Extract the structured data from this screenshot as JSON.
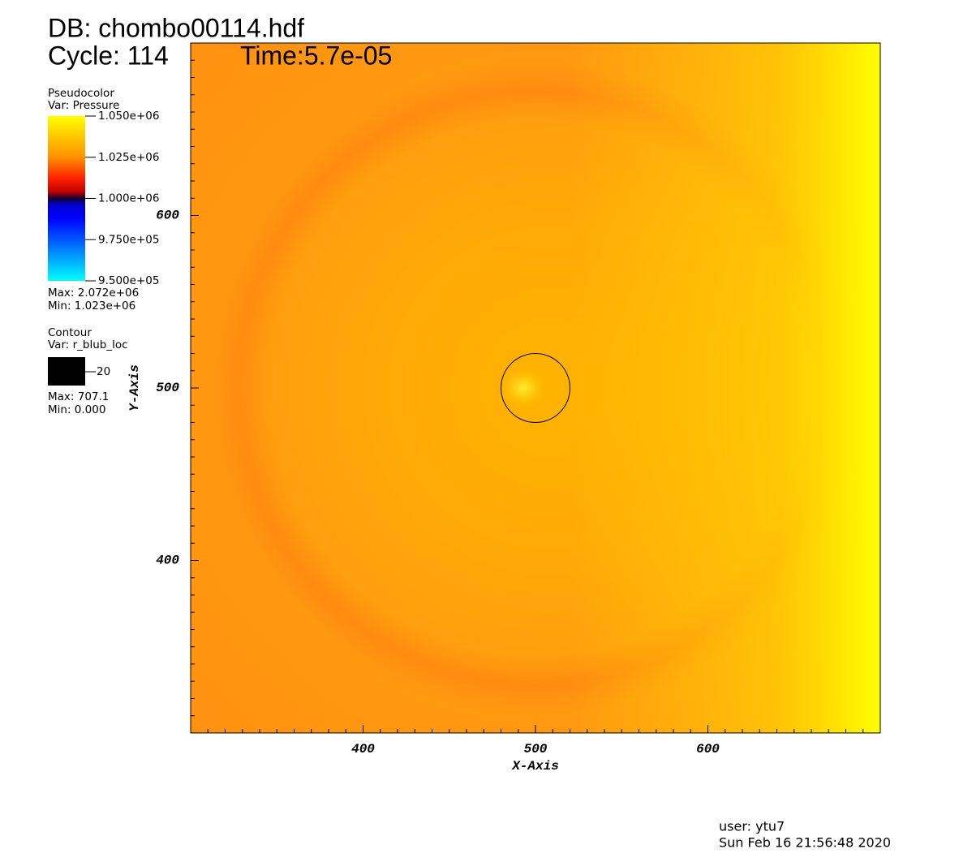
{
  "chart_data": {
    "type": "pseudocolor",
    "database": "DB: chombo00114.hdf",
    "cycle": "Cycle: 114",
    "time": "Time:5.7e-05",
    "x_label": "X-Axis",
    "y_label": "Y-Axis",
    "xlim": [
      300,
      700
    ],
    "ylim": [
      300,
      700
    ],
    "xticks": [
      400,
      500,
      600
    ],
    "yticks": [
      400,
      500,
      600
    ],
    "xminorticks": [
      310,
      320,
      330,
      340,
      350,
      360,
      370,
      380,
      390,
      410,
      420,
      430,
      440,
      450,
      460,
      470,
      480,
      490,
      510,
      520,
      530,
      540,
      550,
      560,
      570,
      580,
      590,
      610,
      620,
      630,
      640,
      650,
      660,
      670,
      680,
      690
    ],
    "yminorticks": [
      310,
      320,
      330,
      340,
      350,
      360,
      370,
      380,
      390,
      410,
      420,
      430,
      440,
      450,
      460,
      470,
      480,
      490,
      510,
      520,
      530,
      540,
      550,
      560,
      570,
      580,
      590,
      610,
      620,
      630,
      640,
      650,
      660,
      670,
      680,
      690
    ],
    "pseudocolor": {
      "title": "Pseudocolor",
      "variable": "Var: Pressure",
      "range": [
        950000,
        1050000
      ],
      "ticks": [
        {
          "value": 1050000,
          "label": "1.050e+06"
        },
        {
          "value": 1025000,
          "label": "1.025e+06"
        },
        {
          "value": 1000000,
          "label": "1.000e+06"
        },
        {
          "value": 975000,
          "label": "9.750e+05"
        },
        {
          "value": 950000,
          "label": "9.500e+05"
        }
      ],
      "max": "Max: 2.072e+06",
      "min": "Min:  1.023e+06"
    },
    "contour": {
      "title": "Contour",
      "variable": "Var: r_blub_loc",
      "levels": [
        20
      ],
      "center": [
        500,
        500
      ],
      "color": "#000000",
      "max": "Max: 707.1",
      "min": "Min: 0.000"
    },
    "user": "user: ytu7",
    "date": "Sun Feb 16 21:56:48 2020"
  }
}
